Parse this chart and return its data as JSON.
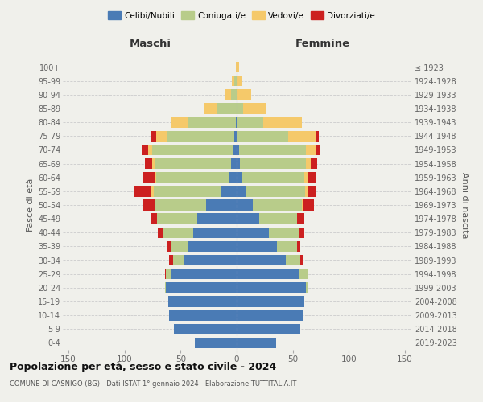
{
  "age_groups": [
    "0-4",
    "5-9",
    "10-14",
    "15-19",
    "20-24",
    "25-29",
    "30-34",
    "35-39",
    "40-44",
    "45-49",
    "50-54",
    "55-59",
    "60-64",
    "65-69",
    "70-74",
    "75-79",
    "80-84",
    "85-89",
    "90-94",
    "95-99",
    "100+"
  ],
  "birth_years": [
    "2019-2023",
    "2014-2018",
    "2009-2013",
    "2004-2008",
    "1999-2003",
    "1994-1998",
    "1989-1993",
    "1984-1988",
    "1979-1983",
    "1974-1978",
    "1969-1973",
    "1964-1968",
    "1959-1963",
    "1954-1958",
    "1949-1953",
    "1944-1948",
    "1939-1943",
    "1934-1938",
    "1929-1933",
    "1924-1928",
    "≤ 1923"
  ],
  "male": {
    "celibi": [
      37,
      56,
      60,
      61,
      63,
      59,
      47,
      43,
      39,
      35,
      27,
      14,
      7,
      5,
      3,
      2,
      1,
      0,
      0,
      0,
      0
    ],
    "coniugati": [
      0,
      0,
      0,
      0,
      1,
      4,
      10,
      16,
      27,
      36,
      46,
      60,
      65,
      68,
      72,
      60,
      42,
      17,
      5,
      2,
      0
    ],
    "vedovi": [
      0,
      0,
      0,
      0,
      0,
      0,
      0,
      0,
      0,
      0,
      0,
      3,
      1,
      2,
      4,
      10,
      16,
      12,
      5,
      2,
      1
    ],
    "divorziati": [
      0,
      0,
      0,
      0,
      0,
      1,
      3,
      3,
      4,
      5,
      10,
      14,
      10,
      7,
      6,
      4,
      0,
      0,
      0,
      0,
      0
    ]
  },
  "female": {
    "nubili": [
      35,
      57,
      59,
      60,
      62,
      55,
      44,
      36,
      29,
      20,
      14,
      8,
      5,
      3,
      2,
      1,
      0,
      0,
      0,
      0,
      0
    ],
    "coniugate": [
      0,
      0,
      0,
      0,
      1,
      8,
      13,
      18,
      27,
      34,
      44,
      53,
      55,
      59,
      60,
      45,
      24,
      6,
      1,
      0,
      0
    ],
    "vedove": [
      0,
      0,
      0,
      0,
      0,
      0,
      0,
      0,
      0,
      0,
      1,
      2,
      3,
      4,
      8,
      24,
      34,
      20,
      12,
      5,
      2
    ],
    "divorziate": [
      0,
      0,
      0,
      0,
      0,
      1,
      2,
      3,
      4,
      6,
      10,
      7,
      8,
      6,
      4,
      3,
      0,
      0,
      0,
      0,
      0
    ]
  },
  "colors": {
    "celibi": "#4a7bb5",
    "coniugati": "#b8cc8a",
    "vedovi": "#f5c96a",
    "divorziati": "#cc2020"
  },
  "xlim": 155,
  "title": "Popolazione per età, sesso e stato civile - 2024",
  "subtitle": "COMUNE DI CASNIGO (BG) - Dati ISTAT 1° gennaio 2024 - Elaborazione TUTTITALIA.IT",
  "ylabel_left": "Fasce di età",
  "ylabel_right": "Anni di nascita",
  "xlabel_left": "Maschi",
  "xlabel_right": "Femmine",
  "bg_color": "#f0f0eb",
  "grid_color": "#cccccc"
}
